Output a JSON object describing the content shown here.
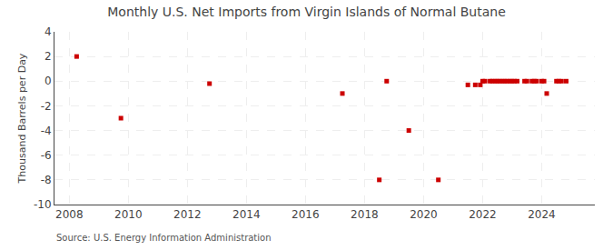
{
  "chart_data": {
    "type": "scatter",
    "title": "Monthly U.S. Net Imports from Virgin Islands of Normal Butane",
    "y_label": "Thousand Barrels per Day",
    "annotations": [
      "Source: U.S. Energy Information Administration"
    ],
    "x": [
      2008.25,
      2009.75,
      2012.75,
      2017.25,
      2018.5,
      2018.75,
      2019.5,
      2020.5,
      2021.5,
      2021.75,
      2021.92,
      2022.0,
      2022.08,
      2022.25,
      2022.33,
      2022.42,
      2022.5,
      2022.58,
      2022.67,
      2022.75,
      2022.83,
      2022.92,
      2023.0,
      2023.08,
      2023.17,
      2023.42,
      2023.5,
      2023.67,
      2023.75,
      2023.83,
      2024.0,
      2024.08,
      2024.17,
      2024.5,
      2024.58,
      2024.67,
      2024.83
    ],
    "values": [
      2,
      -3,
      -0.2,
      -1,
      -8,
      0,
      -4,
      -8,
      -0.3,
      -0.3,
      -0.3,
      0,
      0,
      0,
      0,
      0,
      0,
      0,
      0,
      0,
      0,
      0,
      0,
      0,
      0,
      0,
      0,
      0,
      0,
      0,
      0,
      0,
      -1,
      0,
      0,
      0,
      0
    ],
    "color": "#cc0000",
    "marker": "square",
    "xlim": [
      2007.5,
      2025.8
    ],
    "xticks": [
      2008,
      2010,
      2012,
      2014,
      2016,
      2018,
      2020,
      2022,
      2024
    ],
    "ylim": [
      -10,
      4
    ],
    "yticks": [
      -10,
      -8,
      -6,
      -4,
      -2,
      0,
      2,
      4
    ],
    "grid": true
  }
}
